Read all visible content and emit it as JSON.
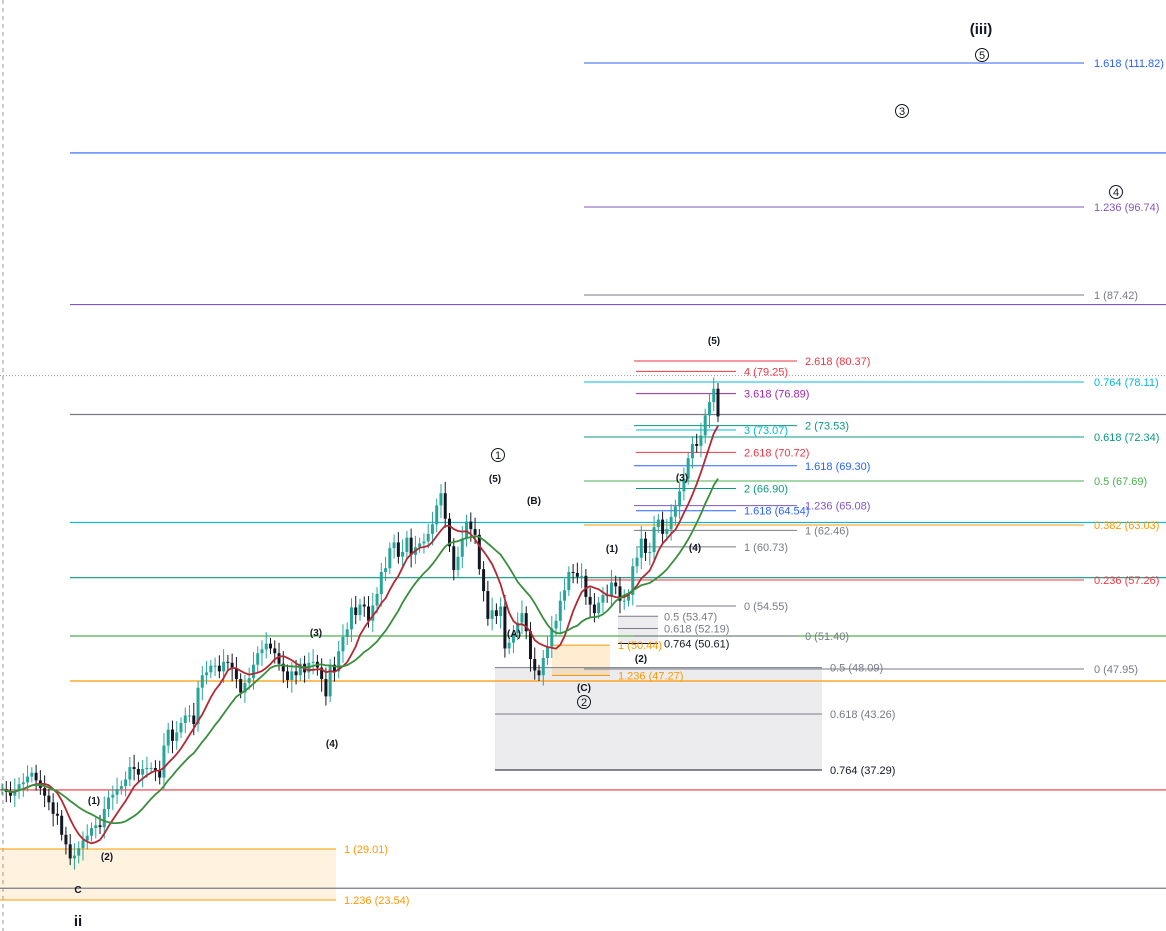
{
  "chart_data": {
    "type": "candlestick",
    "title": "",
    "xlabel": "",
    "ylabel": "",
    "ylim": [
      20.5,
      119
    ],
    "xlim": [
      0,
      240
    ],
    "grid": false,
    "x_unit": "bar index",
    "ohlc": {
      "description": "daily candles, approximate closes",
      "closes": [
        35.3,
        35.0,
        34.6,
        35.1,
        35.8,
        36.0,
        36.6,
        37.0,
        36.2,
        35.4,
        34.6,
        33.9,
        32.7,
        32.5,
        30.5,
        29.5,
        28.0,
        28.3,
        29.1,
        29.9,
        30.4,
        31.2,
        31.5,
        31.3,
        33.2,
        34.4,
        34.7,
        35.3,
        35.6,
        36.3,
        37.6,
        37.4,
        36.8,
        37.4,
        37.5,
        37.5,
        37.2,
        36.5,
        39.9,
        41.6,
        40.4,
        41.3,
        42.3,
        43.1,
        43.1,
        42.2,
        46.0,
        47.3,
        47.6,
        48.3,
        48.3,
        47.7,
        48.7,
        48.6,
        48.0,
        46.9,
        45.5,
        46.5,
        47.0,
        48.4,
        49.6,
        50.0,
        50.6,
        50.1,
        49.6,
        48.5,
        47.7,
        46.8,
        47.7,
        47.3,
        48.5,
        47.6,
        48.6,
        48.7,
        48.1,
        46.9,
        45.1,
        48.4,
        47.7,
        49.8,
        51.3,
        52.1,
        54.4,
        53.6,
        54.7,
        54.5,
        53.0,
        54.6,
        55.8,
        58.1,
        58.5,
        60.6,
        61.2,
        59.7,
        60.2,
        61.7,
        59.9,
        60.7,
        61.1,
        61.3,
        62.1,
        63.1,
        65.1,
        66.4,
        63.7,
        60.8,
        58.3,
        59.7,
        61.6,
        63.4,
        62.6,
        62.0,
        58.4,
        56.1,
        53.2,
        54.1,
        53.5,
        54.5,
        50.1,
        50.7,
        51.7,
        52.8,
        53.8,
        51.9,
        49.0,
        47.8,
        47.3,
        49.1,
        50.3,
        52.2,
        53.0,
        55.1,
        56.2,
        58.1,
        58.0,
        57.6,
        57.7,
        55.5,
        54.7,
        53.8,
        54.9,
        55.7,
        55.6,
        57.0,
        56.6,
        55.1,
        55.1,
        55.7,
        58.7,
        59.6,
        61.6,
        60.1,
        60.2,
        62.8,
        63.6,
        62.1,
        62.6,
        63.9,
        65.0,
        66.6,
        67.9,
        70.1,
        71.6,
        71.4,
        72.5,
        74.6,
        76.0,
        77.4,
        74.5
      ]
    },
    "moving_averages": [
      {
        "name": "",
        "color": "#b22833",
        "description": "short moving average"
      },
      {
        "name": "",
        "color": "#388e3c",
        "description": "long moving average"
      }
    ],
    "horizontal_lines": [
      {
        "price": 102.4,
        "color": "#2962ff"
      },
      {
        "price": 86.4,
        "color": "#7e57c2"
      },
      {
        "price": 74.7,
        "color": "#787b86"
      },
      {
        "price": 63.3,
        "color": "#00bcd4"
      },
      {
        "price": 57.5,
        "color": "#089981"
      },
      {
        "price": 51.4,
        "color": "#4caf50"
      },
      {
        "price": 46.7,
        "color": "#ff9800"
      },
      {
        "price": 35.2,
        "color": "#f23645"
      },
      {
        "price": 24.8,
        "color": "#787b86"
      },
      {
        "price": 78.8,
        "color": "#9598a1",
        "dotted": true
      }
    ],
    "fib_levels": [
      {
        "label": "1.618 (111.82)",
        "price": 111.82,
        "color": "#2962ff"
      },
      {
        "label": "1.236 (96.74)",
        "price": 96.74,
        "color": "#7e57c2"
      },
      {
        "label": "1 (87.42)",
        "price": 87.42,
        "color": "#787b86"
      },
      {
        "label": "0.764 (78.11)",
        "price": 78.11,
        "color": "#00bcd4"
      },
      {
        "label": "0.618 (72.34)",
        "price": 72.34,
        "color": "#089981"
      },
      {
        "label": "0.5 (67.69)",
        "price": 67.69,
        "color": "#4caf50"
      },
      {
        "label": "0.382 (63.03)",
        "price": 63.03,
        "color": "#ff9800"
      },
      {
        "label": "0.236 (57.26)",
        "price": 57.26,
        "color": "#f23645"
      },
      {
        "label": "0 (47.95)",
        "price": 47.95,
        "color": "#787b86"
      }
    ],
    "fib_extension_small": [
      {
        "label": "2.618 (80.37)",
        "price": 80.37,
        "color": "#f23645"
      },
      {
        "label": "2 (73.53)",
        "price": 73.53,
        "color": "#089981"
      },
      {
        "label": "1.618 (69.30)",
        "price": 69.3,
        "color": "#2962ff"
      },
      {
        "label": "1.236 (65.08)",
        "price": 65.08,
        "color": "#7e57c2"
      },
      {
        "label": "1 (62.46)",
        "price": 62.46,
        "color": "#787b86"
      },
      {
        "label": "0 (51.40)",
        "price": 51.4,
        "color": "#787b86"
      }
    ],
    "fib_extension_inner": [
      {
        "label": "4 (79.25)",
        "price": 79.25,
        "color": "#f23645"
      },
      {
        "label": "3.618 (76.89)",
        "price": 76.89,
        "color": "#9c27b0"
      },
      {
        "label": "3 (73.07)",
        "price": 73.07,
        "color": "#00bcd4"
      },
      {
        "label": "2.618 (70.72)",
        "price": 70.72,
        "color": "#f23645"
      },
      {
        "label": "2 (66.90)",
        "price": 66.9,
        "color": "#089981"
      },
      {
        "label": "1.618 (64.54)",
        "price": 64.54,
        "color": "#2962ff"
      },
      {
        "label": "1 (60.73)",
        "price": 60.73,
        "color": "#787b86"
      },
      {
        "label": "0 (54.55)",
        "price": 54.55,
        "color": "#787b86"
      }
    ],
    "fib_retracement_wave2": [
      {
        "label": "0.5 (53.47)",
        "price": 53.47,
        "color": "#787b86"
      },
      {
        "label": "0.618 (52.19)",
        "price": 52.19,
        "color": "#787b86"
      },
      {
        "label": "0.764 (50.61)",
        "price": 50.61,
        "color": "#131722"
      },
      {
        "label": "1 (50.44)",
        "price": 50.44,
        "color": "#ff9800"
      },
      {
        "label": "1.236 (47.27)",
        "price": 47.27,
        "color": "#ff9800"
      }
    ],
    "fib_retracement_wave1": [
      {
        "label": "0.5 (48.09)",
        "price": 48.09,
        "color": "#787b86"
      },
      {
        "label": "0.618 (43.26)",
        "price": 43.26,
        "color": "#787b86"
      },
      {
        "label": "0.764 (37.29)",
        "price": 37.29,
        "color": "#131722"
      }
    ],
    "fib_base": [
      {
        "label": "1 (29.01)",
        "price": 29.01,
        "color": "#ff9800"
      },
      {
        "label": "1.236 (23.54)",
        "price": 23.54,
        "color": "#ff9800"
      }
    ],
    "wave_labels": [
      {
        "text": "(1)",
        "bar": 20,
        "price": 32.2
      },
      {
        "text": "(2)",
        "bar": 23,
        "price": 27.8
      },
      {
        "text": "(3)",
        "bar": 67,
        "price": 53.5
      },
      {
        "text": "(4)",
        "bar": 73,
        "price": 42.5
      },
      {
        "text": "(5)",
        "bar": 103,
        "price": 68.5
      },
      {
        "text": "(A)",
        "bar": 108,
        "price": 53.3
      },
      {
        "text": "(B)",
        "bar": 114,
        "price": 66.6
      },
      {
        "text": "(C)",
        "bar": 125,
        "price": 46.2
      },
      {
        "text": "(1)",
        "bar": 131,
        "price": 61.2
      },
      {
        "text": "(2)",
        "bar": 137,
        "price": 49.4
      },
      {
        "text": "(3)",
        "bar": 146,
        "price": 68.9
      },
      {
        "text": "(4)",
        "bar": 149,
        "price": 61.1
      },
      {
        "text": "(5)",
        "bar": 153,
        "price": 82.5
      },
      {
        "text": "C",
        "bar": 16,
        "price": 25.8
      },
      {
        "text": "ii",
        "bar": 16,
        "price": 20.9
      },
      {
        "text": "(iii)",
        "bar": 211,
        "price": 118.0
      }
    ],
    "circled_labels": [
      {
        "text": "1",
        "bar": 106,
        "price": 71.4
      },
      {
        "text": "2",
        "bar": 125,
        "price": 44.7
      },
      {
        "text": "3",
        "bar": 193,
        "price": 107.0
      },
      {
        "text": "4",
        "bar": 239,
        "price": 97.7
      },
      {
        "text": "5",
        "bar": 210,
        "price": 114.6
      }
    ]
  }
}
